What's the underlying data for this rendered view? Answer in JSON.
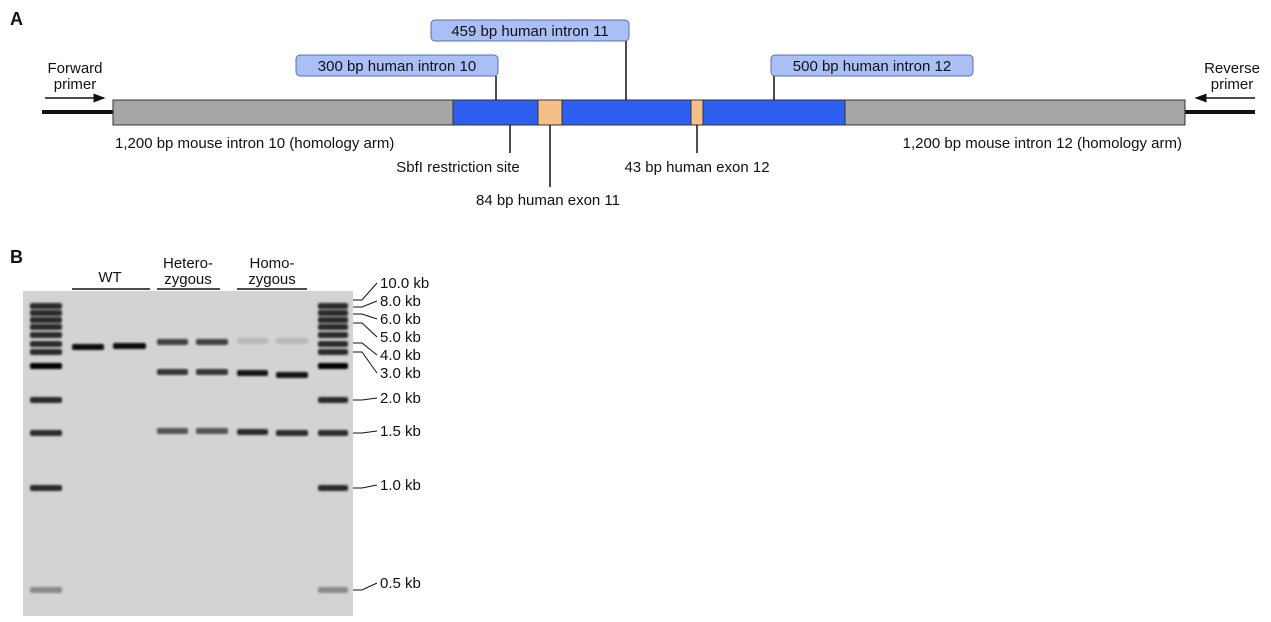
{
  "panel_a": {
    "label": "A",
    "forward_primer": [
      "Forward",
      "primer"
    ],
    "reverse_primer": [
      "Reverse",
      "primer"
    ],
    "callouts": [
      "300 bp human intron 10",
      "459 bp human intron 11",
      "500 bp human intron 12"
    ],
    "left_arm": "1,200 bp mouse intron 10 (homology arm)",
    "right_arm": "1,200 bp mouse intron 12 (homology arm)",
    "restriction_site": "SbfI restriction site",
    "exon_11": "84 bp human exon 11",
    "exon_12": "43 bp human exon 12"
  },
  "panel_b": {
    "label": "B",
    "groups": [
      [
        "WT"
      ],
      [
        "Hetero-",
        "zygous"
      ],
      [
        "Homo-",
        "zygous"
      ]
    ],
    "ladder": [
      "10.0 kb",
      "8.0 kb",
      "6.0 kb",
      "5.0 kb",
      "4.0 kb",
      "3.0 kb",
      "2.0 kb",
      "1.5 kb",
      "1.0 kb",
      "0.5 kb"
    ]
  }
}
